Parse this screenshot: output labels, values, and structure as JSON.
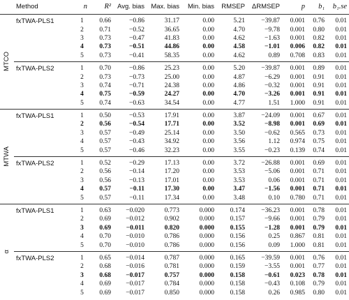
{
  "header": [
    "Method",
    "n",
    "R²",
    "Avg. bias",
    "Max. bias",
    "Min. bias",
    "RMSEP",
    "ΔRMSEP",
    "p",
    "b₁",
    "b₁.se"
  ],
  "italic_columns": [
    1,
    2,
    8,
    9,
    10
  ],
  "groups": [
    {
      "label": "MTCO",
      "blocks": [
        {
          "method": "fxTWA-PLS1",
          "bold_row": 3,
          "rows": [
            [
              "1",
              "0.66",
              "−0.86",
              "31.17",
              "0.00",
              "5.21",
              "−39.87",
              "0.001",
              "0.76",
              "0.01"
            ],
            [
              "2",
              "0.71",
              "−0.52",
              "36.65",
              "0.00",
              "4.70",
              "−9.78",
              "0.001",
              "0.80",
              "0.01"
            ],
            [
              "3",
              "0.73",
              "−0.47",
              "41.83",
              "0.00",
              "4.62",
              "−1.63",
              "0.001",
              "0.82",
              "0.01"
            ],
            [
              "4",
              "0.73",
              "−0.51",
              "44.86",
              "0.00",
              "4.58",
              "−1.01",
              "0.006",
              "0.82",
              "0.01"
            ],
            [
              "5",
              "0.73",
              "−0.41",
              "58.35",
              "0.00",
              "4.62",
              "0.89",
              "0.708",
              "0.83",
              "0.01"
            ]
          ]
        },
        {
          "method": "fxTWA-PLS2",
          "bold_row": 3,
          "rows": [
            [
              "1",
              "0.70",
              "−0.86",
              "25.23",
              "0.00",
              "5.20",
              "−39.87",
              "0.001",
              "0.89",
              "0.01"
            ],
            [
              "2",
              "0.73",
              "−0.73",
              "25.00",
              "0.00",
              "4.87",
              "−6.29",
              "0.001",
              "0.91",
              "0.01"
            ],
            [
              "3",
              "0.74",
              "−0.71",
              "24.38",
              "0.00",
              "4.86",
              "−0.32",
              "0.001",
              "0.91",
              "0.01"
            ],
            [
              "4",
              "0.75",
              "−0.59",
              "24.27",
              "0.00",
              "4.70",
              "−3.26",
              "0.001",
              "0.91",
              "0.01"
            ],
            [
              "5",
              "0.74",
              "−0.63",
              "34.54",
              "0.00",
              "4.77",
              "1.51",
              "1.000",
              "0.91",
              "0.01"
            ]
          ]
        }
      ]
    },
    {
      "label": "MTWA",
      "blocks": [
        {
          "method": "fxTWA-PLS1",
          "bold_row": 1,
          "rows": [
            [
              "1",
              "0.50",
              "−0.53",
              "17.91",
              "0.00",
              "3.87",
              "−24.09",
              "0.001",
              "0.67",
              "0.01"
            ],
            [
              "2",
              "0.56",
              "−0.54",
              "17.71",
              "0.00",
              "3.52",
              "−8.98",
              "0.001",
              "0.69",
              "0.01"
            ],
            [
              "3",
              "0.57",
              "−0.49",
              "25.14",
              "0.00",
              "3.50",
              "−0.62",
              "0.565",
              "0.73",
              "0.01"
            ],
            [
              "4",
              "0.57",
              "−0.43",
              "34.92",
              "0.00",
              "3.56",
              "1.12",
              "0.974",
              "0.75",
              "0.01"
            ],
            [
              "5",
              "0.57",
              "−0.46",
              "32.23",
              "0.00",
              "3.55",
              "−0.23",
              "0.139",
              "0.74",
              "0.01"
            ]
          ]
        },
        {
          "method": "fxTWA-PLS2",
          "bold_row": 3,
          "rows": [
            [
              "1",
              "0.52",
              "−0.29",
              "17.13",
              "0.00",
              "3.72",
              "−26.88",
              "0.001",
              "0.69",
              "0.01"
            ],
            [
              "2",
              "0.56",
              "−0.14",
              "17.20",
              "0.00",
              "3.53",
              "−5.06",
              "0.001",
              "0.71",
              "0.01"
            ],
            [
              "3",
              "0.56",
              "−0.13",
              "17.01",
              "0.00",
              "3.53",
              "0.06",
              "0.001",
              "0.71",
              "0.01"
            ],
            [
              "4",
              "0.57",
              "−0.11",
              "17.30",
              "0.00",
              "3.47",
              "−1.56",
              "0.001",
              "0.71",
              "0.01"
            ],
            [
              "5",
              "0.57",
              "−0.11",
              "17.34",
              "0.00",
              "3.48",
              "0.10",
              "0.780",
              "0.71",
              "0.01"
            ]
          ]
        }
      ]
    },
    {
      "label": "α",
      "blocks": [
        {
          "method": "fxTWA-PLS1",
          "bold_row": 2,
          "rows": [
            [
              "1",
              "0.63",
              "−0.020",
              "0.773",
              "0.000",
              "0.174",
              "−36.23",
              "0.001",
              "0.78",
              "0.01"
            ],
            [
              "2",
              "0.69",
              "−0.012",
              "0.902",
              "0.000",
              "0.157",
              "−9.66",
              "0.001",
              "0.79",
              "0.01"
            ],
            [
              "3",
              "0.69",
              "−0.011",
              "0.820",
              "0.000",
              "0.155",
              "−1.28",
              "0.001",
              "0.79",
              "0.01"
            ],
            [
              "4",
              "0.70",
              "−0.010",
              "0.786",
              "0.000",
              "0.156",
              "0.25",
              "0.867",
              "0.81",
              "0.01"
            ],
            [
              "5",
              "0.70",
              "−0.010",
              "0.786",
              "0.000",
              "0.156",
              "0.09",
              "1.000",
              "0.81",
              "0.01"
            ]
          ]
        },
        {
          "method": "fxTWA-PLS2",
          "bold_row": 2,
          "rows": [
            [
              "1",
              "0.65",
              "−0.014",
              "0.787",
              "0.000",
              "0.165",
              "−39.59",
              "0.001",
              "0.76",
              "0.01"
            ],
            [
              "2",
              "0.68",
              "−0.016",
              "0.781",
              "0.000",
              "0.159",
              "−3.55",
              "0.001",
              "0.77",
              "0.01"
            ],
            [
              "3",
              "0.68",
              "−0.017",
              "0.757",
              "0.000",
              "0.158",
              "−0.61",
              "0.023",
              "0.78",
              "0.01"
            ],
            [
              "4",
              "0.69",
              "−0.017",
              "0.784",
              "0.000",
              "0.158",
              "−0.43",
              "0.108",
              "0.79",
              "0.01"
            ],
            [
              "5",
              "0.69",
              "−0.017",
              "0.850",
              "0.000",
              "0.158",
              "0.26",
              "0.985",
              "0.80",
              "0.01"
            ]
          ]
        }
      ]
    }
  ]
}
